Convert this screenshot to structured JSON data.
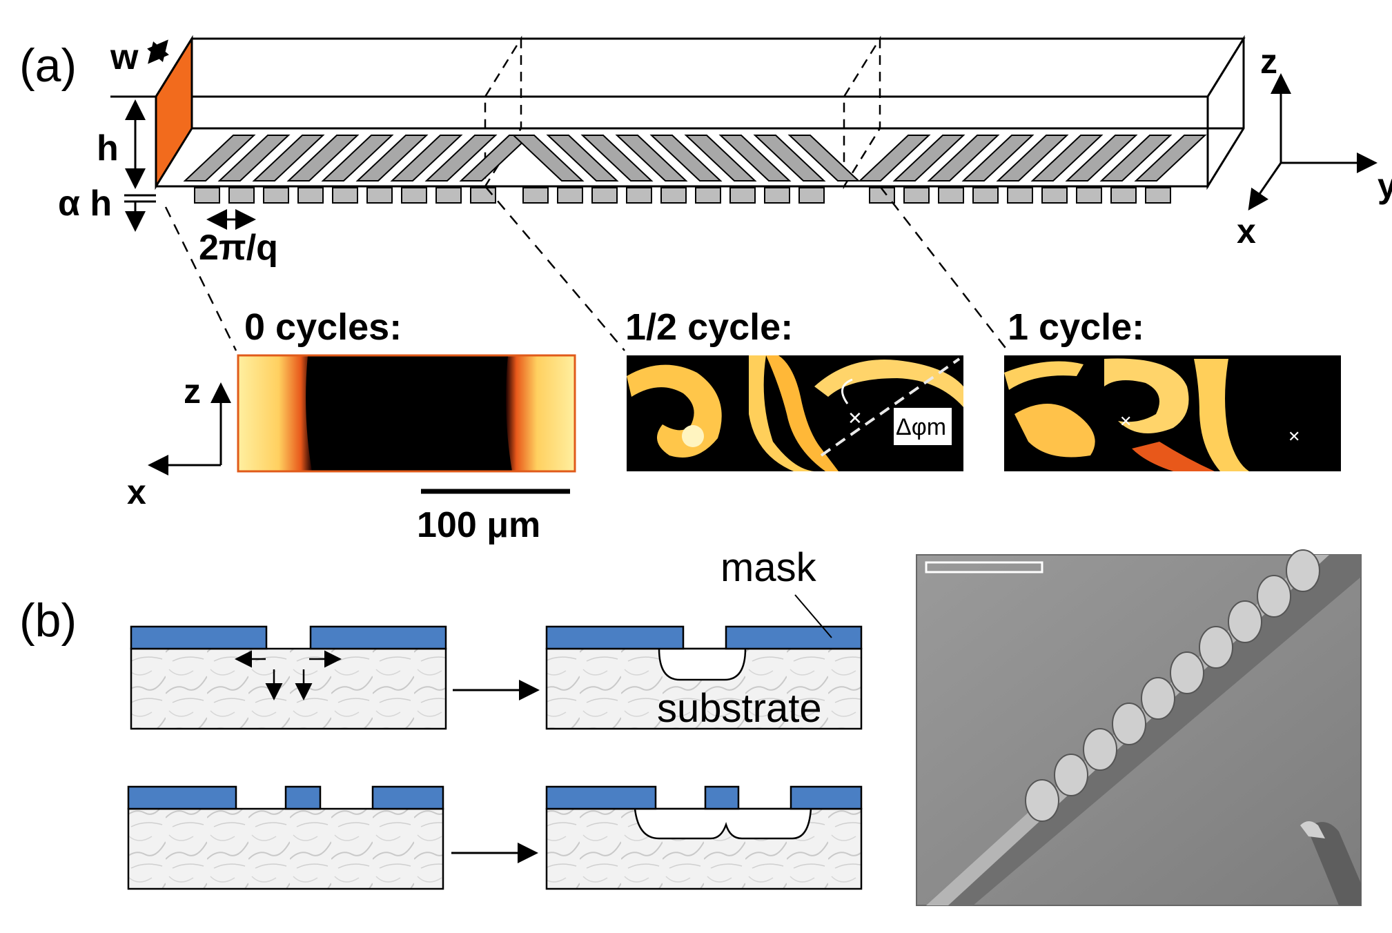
{
  "panel_a": {
    "label": "(a)",
    "dims": {
      "w": "w",
      "h": "h",
      "alpha_h": "α h",
      "period": "2π/q"
    },
    "axes3d": {
      "z": "z",
      "y": "y",
      "x": "x"
    },
    "axes2d": {
      "z": "z",
      "x": "x"
    },
    "snapshots": [
      {
        "title": "0 cycles:"
      },
      {
        "title": "1/2 cycle:",
        "annotation": "Δφm"
      },
      {
        "title": "1 cycle:"
      }
    ],
    "scale_bar": "100 μm"
  },
  "panel_b": {
    "label": "(b)",
    "mask_label": "mask",
    "substrate_label": "substrate"
  },
  "colors": {
    "mask": "#4a7fc4",
    "channel_face": "#f26b1d",
    "chevron": "#a8a8a8",
    "sem_bg": "#8f8f8f",
    "heat_dark": "#000000",
    "heat_bright": "#fff4b0"
  }
}
